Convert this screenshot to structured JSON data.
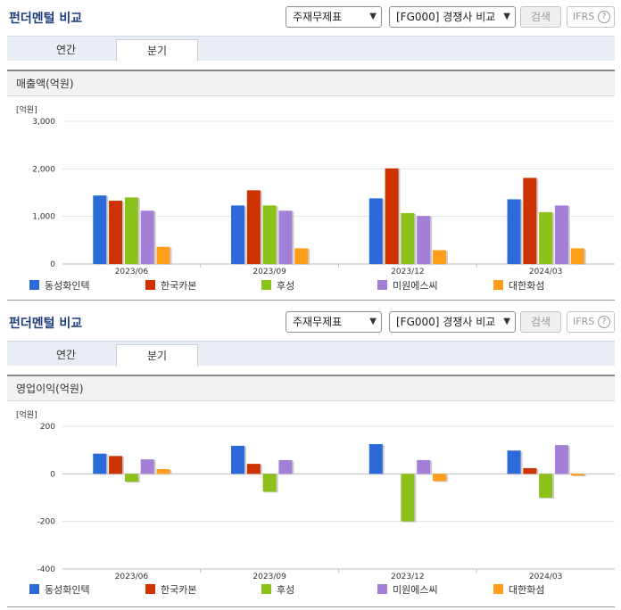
{
  "panels": [
    {
      "title": "펀더멘털 비교",
      "select_statement": "주재무제표",
      "select_compare": "[FG000] 경쟁사 비교",
      "search_label": "검색",
      "ifrs_label": "IFRS",
      "ifrs_help": "?",
      "tabs": [
        {
          "label": "연간"
        },
        {
          "label": "분기"
        }
      ],
      "active_tab": 1,
      "metric_label": "매출액(억원)"
    },
    {
      "title": "펀더멘털 비교",
      "select_statement": "주재무제표",
      "select_compare": "[FG000] 경쟁사 비교",
      "search_label": "검색",
      "ifrs_label": "IFRS",
      "ifrs_help": "?",
      "tabs": [
        {
          "label": "연간"
        },
        {
          "label": "분기"
        }
      ],
      "active_tab": 1,
      "metric_label": "영업이익(억원)"
    }
  ],
  "colors": {
    "series": [
      "#2b6ad8",
      "#cc3300",
      "#8cc01a",
      "#a47fd8",
      "#ff9e1a"
    ],
    "grid": "#e3e3e3",
    "axis": "#bdbdbd",
    "title": "#1f3f7a"
  },
  "chart_data": [
    {
      "type": "bar",
      "unit": "[억원]",
      "categories": [
        "2023/06",
        "2023/09",
        "2023/12",
        "2024/03"
      ],
      "ylim": [
        0,
        3000
      ],
      "yticks": [
        0,
        1000,
        2000,
        3000
      ],
      "ytick_labels": [
        "0",
        "1,000",
        "2,000",
        "3,000"
      ],
      "legend_position": "bottom",
      "series": [
        {
          "name": "동성화인텍",
          "values": [
            1440,
            1230,
            1380,
            1360
          ]
        },
        {
          "name": "한국카본",
          "values": [
            1330,
            1550,
            2010,
            1810
          ]
        },
        {
          "name": "후성",
          "values": [
            1400,
            1230,
            1070,
            1090
          ]
        },
        {
          "name": "미원에스씨",
          "values": [
            1120,
            1120,
            1010,
            1230
          ]
        },
        {
          "name": "대한화섬",
          "values": [
            360,
            330,
            290,
            330
          ]
        }
      ]
    },
    {
      "type": "bar",
      "unit": "[억원]",
      "categories": [
        "2023/06",
        "2023/09",
        "2023/12",
        "2024/03"
      ],
      "ylim": [
        -400,
        200
      ],
      "yticks": [
        -400,
        -200,
        0,
        200
      ],
      "ytick_labels": [
        "-400",
        "-200",
        "0",
        "200"
      ],
      "legend_position": "bottom",
      "series": [
        {
          "name": "동성화인텍",
          "values": [
            85,
            118,
            125,
            98
          ]
        },
        {
          "name": "한국카본",
          "values": [
            75,
            42,
            0,
            24
          ]
        },
        {
          "name": "후성",
          "values": [
            -33,
            -75,
            -200,
            -100
          ]
        },
        {
          "name": "미원에스씨",
          "values": [
            61,
            58,
            58,
            121
          ]
        },
        {
          "name": "대한화섬",
          "values": [
            20,
            0,
            -30,
            -7
          ]
        }
      ]
    }
  ]
}
